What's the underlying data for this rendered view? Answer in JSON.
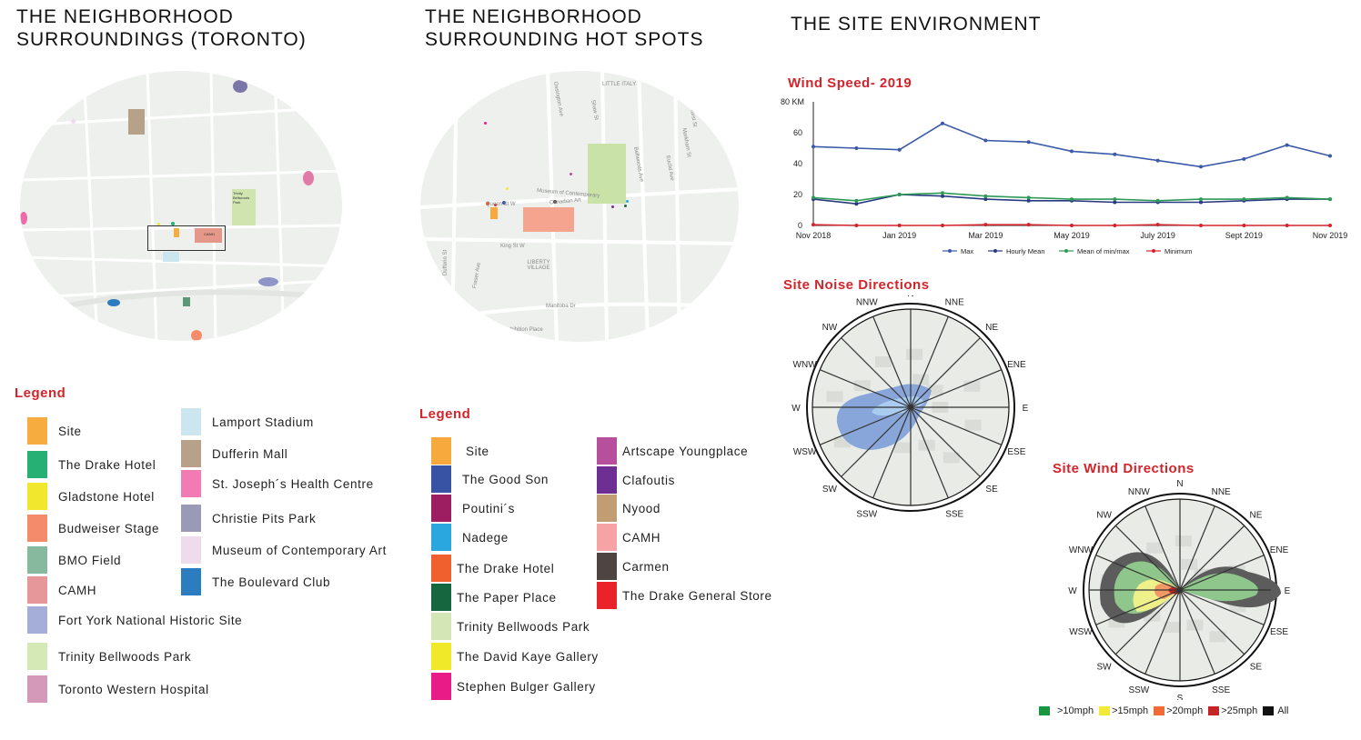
{
  "col1": {
    "title_line1": "THE NEIGHBORHOOD",
    "title_line2": "SURROUNDINGS (TORONTO)",
    "map_labels": {
      "park": "Trinity Bellwoods Park",
      "camh": "CAMH"
    },
    "legend_title": "Legend",
    "legend": [
      {
        "label": "Site",
        "color": "#f6ac3e"
      },
      {
        "label": "The Drake Hotel",
        "color": "#27b074"
      },
      {
        "label": "Gladstone Hotel",
        "color": "#f1e72c"
      },
      {
        "label": "Budweiser Stage",
        "color": "#f48c6b"
      },
      {
        "label": "BMO Field",
        "color": "#87b99f"
      },
      {
        "label": "CAMH",
        "color": "#e5979a"
      },
      {
        "label": "Fort York National Historic Site",
        "color": "#a5aed9"
      },
      {
        "label": "Trinity Bellwoods Park",
        "color": "#d4e9b6"
      },
      {
        "label": "Toronto Western Hospital",
        "color": "#d498b8"
      },
      {
        "label": "Lamport Stadium",
        "color": "#cce6ef"
      },
      {
        "label": "Dufferin Mall",
        "color": "#b8a189"
      },
      {
        "label": "St. Joseph´s Health Centre",
        "color": "#f27bb3"
      },
      {
        "label": "Christie Pits Park",
        "color": "#9b99b8"
      },
      {
        "label": "Museum of Contemporary Art",
        "color": "#eedbec"
      },
      {
        "label": "The Boulevard Club",
        "color": "#2c7cc0"
      }
    ]
  },
  "col2": {
    "title_line1": "THE NEIGHBORHOOD",
    "title_line2": "SURROUNDING HOT SPOTS",
    "map_labels": {
      "museum": "Museum of Contemporary",
      "canadian_art": "Canadian Art",
      "little_italy": "LITTLE ITALY",
      "queen": "Queen St W",
      "king": "King St W",
      "liberty": "LIBERTY VILLAGE",
      "dufferin": "Dufferin St",
      "fraser": "Fraser Ave",
      "manitoba": "Manitoba Dr",
      "exhibition": "Exhibition Place",
      "bellwoods": "Bellwoods Ave",
      "ossington": "Ossington Ave",
      "shaw": "Shaw St",
      "euclid": "Euclid Ave",
      "bathurst": "Bathurst St",
      "markham": "Markham St"
    },
    "legend_title": "Legend",
    "legend": [
      {
        "label": "Site",
        "color": "#f8a93d"
      },
      {
        "label": "The Good Son",
        "color": "#3853a3"
      },
      {
        "label": "Poutini´s",
        "color": "#9e1e62"
      },
      {
        "label": "Nadege",
        "color": "#2ba7e0"
      },
      {
        "label": "The Drake Hotel",
        "color": "#f0602f"
      },
      {
        "label": "The Paper Place",
        "color": "#16673f"
      },
      {
        "label": "Trinity Bellwoods Park",
        "color": "#d4e6b5"
      },
      {
        "label": "The David Kaye Gallery",
        "color": "#f0e92a"
      },
      {
        "label": "Stephen Bulger Gallery",
        "color": "#e91b86"
      },
      {
        "label": "Artscape Youngplace",
        "color": "#b64f9c"
      },
      {
        "label": "Clafoutis",
        "color": "#6d2f91"
      },
      {
        "label": "Nyood",
        "color": "#c29d74"
      },
      {
        "label": "CAMH",
        "color": "#f5a3a5"
      },
      {
        "label": "Carmen",
        "color": "#4e4442"
      },
      {
        "label": "The Drake General Store",
        "color": "#e92329"
      }
    ]
  },
  "col3": {
    "title": "THE SITE ENVIRONMENT",
    "wind_speed_title": "Wind Speed- 2019",
    "noise_title": "Site Noise Directions",
    "wind_dir_title": "Site Wind Directions",
    "compass": [
      "N",
      "NNE",
      "NE",
      "ENE",
      "E",
      "ESE",
      "SE",
      "SSE",
      "S",
      "SSW",
      "SW",
      "WSW",
      "W",
      "WNW",
      "NW",
      "NNW"
    ],
    "wind_legend": [
      {
        "label": ">10mph",
        "color": "#1a9641"
      },
      {
        "label": ">15mph",
        "color": "#f2e939"
      },
      {
        "label": ">20mph",
        "color": "#ef6c3a"
      },
      {
        "label": ">25mph",
        "color": "#c52427"
      },
      {
        "label": "All",
        "color": "#111111"
      }
    ]
  },
  "chart_data": {
    "type": "line",
    "title": "Wind Speed- 2019",
    "ylabel": "KM",
    "y_top_label": "80 KM",
    "ylim": [
      0,
      80
    ],
    "yticks": [
      0,
      20,
      40,
      60
    ],
    "x_ticks": [
      "Nov 2018",
      "Jan 2019",
      "Mar 2019",
      "May 2019",
      "July 2019",
      "Sept 2019",
      "Nov 2019"
    ],
    "x": [
      0,
      1,
      2,
      3,
      4,
      5,
      6,
      7,
      8,
      9,
      10,
      11,
      12
    ],
    "series": [
      {
        "name": "Max",
        "color": "#3a59a8",
        "values": [
          51,
          50,
          49,
          66,
          55,
          54,
          48,
          46,
          42,
          38,
          43,
          52,
          45
        ]
      },
      {
        "name": "Hourly Mean",
        "color": "#283a82",
        "values": [
          17,
          14,
          20,
          19,
          17,
          16,
          16,
          15,
          15,
          15,
          16,
          17,
          17
        ]
      },
      {
        "name": "Mean of min/max",
        "color": "#2e9a55",
        "values": [
          18,
          16,
          20,
          21,
          19,
          18,
          17,
          17,
          16,
          17,
          17,
          18,
          17
        ]
      },
      {
        "name": "Minimum",
        "color": "#d3242b",
        "values": [
          0.5,
          0,
          0,
          0,
          0.5,
          0.5,
          0,
          0,
          0.5,
          0,
          0,
          0,
          0
        ]
      }
    ]
  }
}
